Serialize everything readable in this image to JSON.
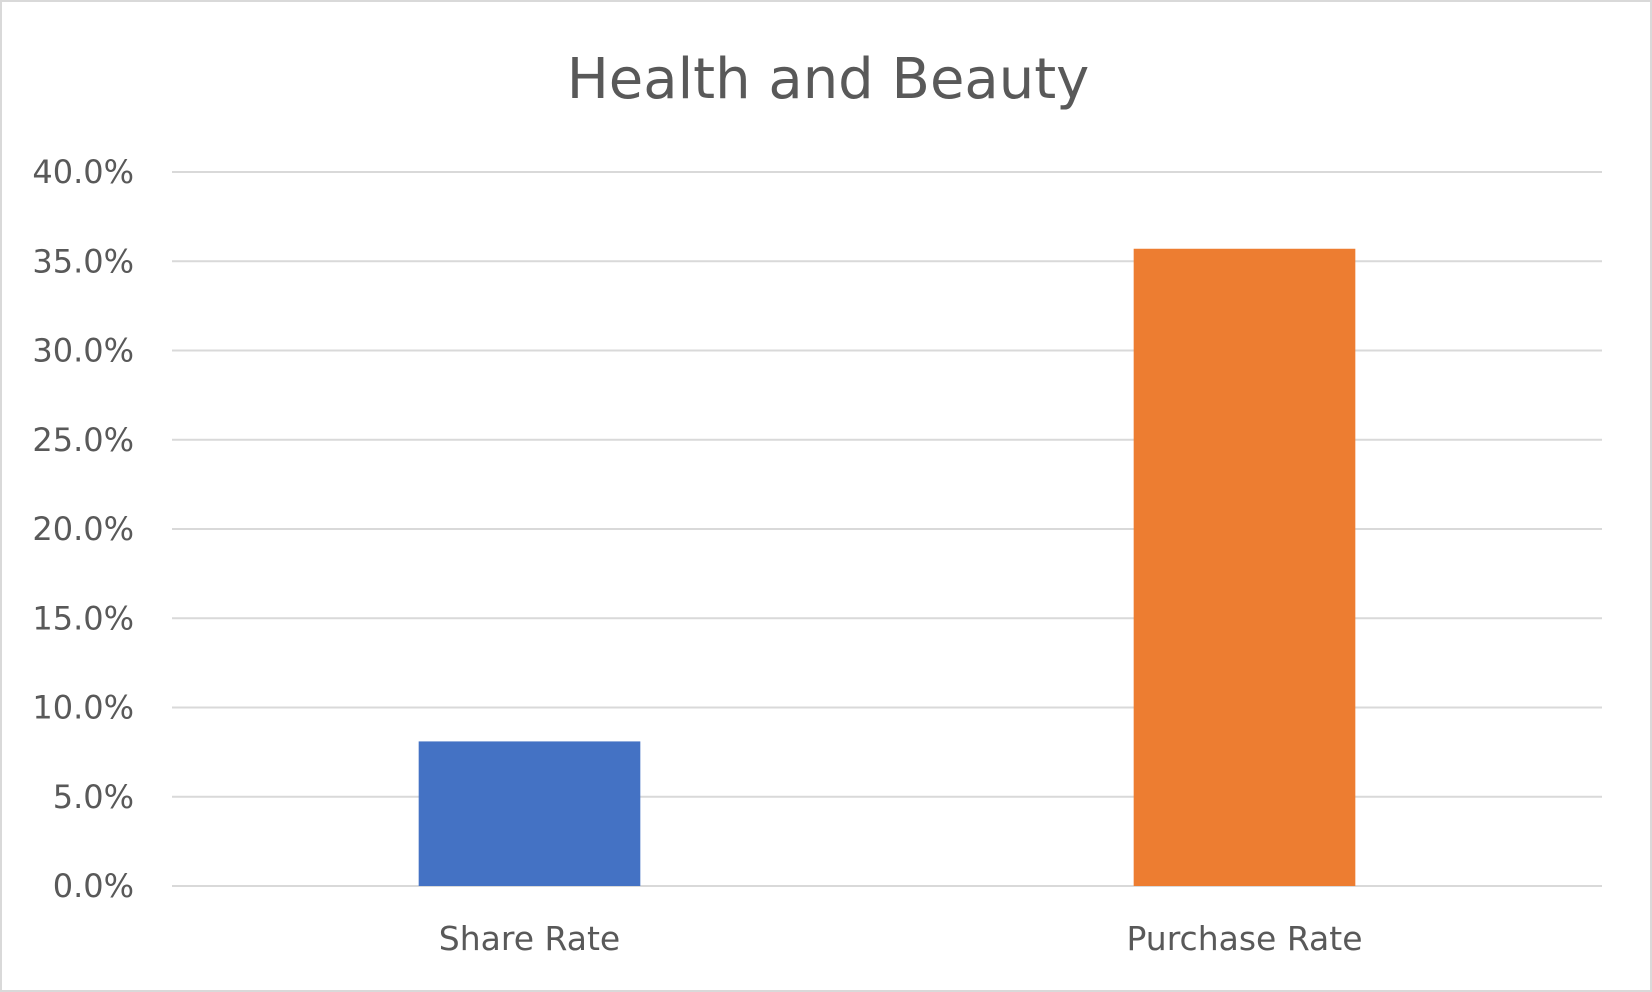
{
  "chart_data": {
    "type": "bar",
    "title": "Health and Beauty",
    "xlabel": "",
    "ylabel": "",
    "categories": [
      "Share Rate",
      "Purchase Rate"
    ],
    "values": [
      0.081,
      0.357
    ],
    "bar_colors": [
      "#4472c4",
      "#ed7d31"
    ],
    "ylim": [
      0,
      0.4
    ],
    "y_ticks": [
      0,
      0.05,
      0.1,
      0.15,
      0.2,
      0.25,
      0.3,
      0.35,
      0.4
    ],
    "y_tick_labels": [
      "0.0%",
      "5.0%",
      "10.0%",
      "15.0%",
      "20.0%",
      "25.0%",
      "30.0%",
      "35.0%",
      "40.0%"
    ],
    "grid": true,
    "legend": "none"
  }
}
